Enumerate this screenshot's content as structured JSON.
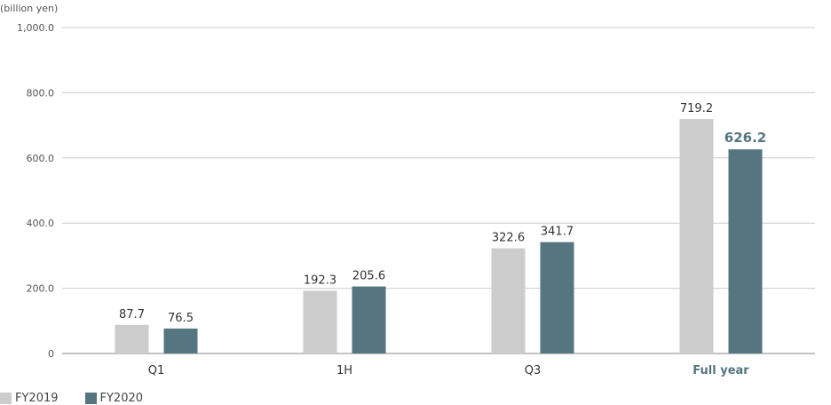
{
  "chart_data": {
    "type": "bar",
    "ylabel": "(billion yen)",
    "ylim": [
      0,
      1000
    ],
    "y_ticks": [
      "0",
      "200.0",
      "400.0",
      "600.0",
      "800.0",
      "1,000.0"
    ],
    "y_tick_values": [
      0,
      200,
      400,
      600,
      800,
      1000
    ],
    "grid": true,
    "legend_position": "bottom-left",
    "categories": [
      "Q1",
      "1H",
      "Q3",
      "Full year"
    ],
    "highlight_category": "Full year",
    "series": [
      {
        "name": "FY2019",
        "color": "#cccccc",
        "values": [
          87.7,
          192.3,
          322.6,
          719.2
        ],
        "labels": [
          "87.7",
          "192.3",
          "322.6",
          "719.2"
        ]
      },
      {
        "name": "FY2020",
        "color": "#557580",
        "values": [
          76.5,
          205.6,
          341.7,
          626.2
        ],
        "labels": [
          "76.5",
          "205.6",
          "341.7",
          "626.2"
        ]
      }
    ],
    "colors": {
      "grid": "#cccccc",
      "axis": "#888888",
      "text": "#333333",
      "highlight_text": "#557580"
    }
  }
}
